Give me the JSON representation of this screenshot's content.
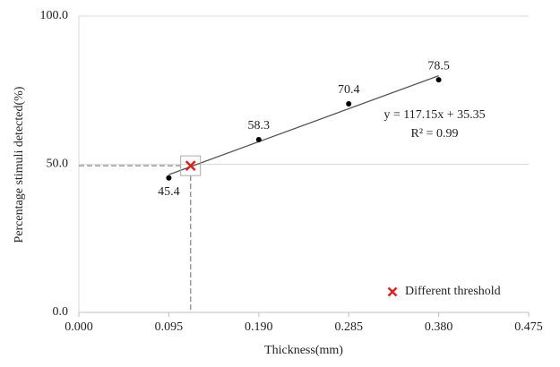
{
  "chart_data": {
    "type": "scatter",
    "x": [
      0.095,
      0.19,
      0.285,
      0.38
    ],
    "values": [
      45.4,
      58.3,
      70.4,
      78.5
    ],
    "color": "#000000",
    "xlabel": "Thickness(mm)",
    "ylabel": "Percentage stimuli detected(%)",
    "xlim": [
      0,
      0.475
    ],
    "xticks": [
      {
        "value": 0,
        "label": "0.000"
      },
      0.095,
      {
        "value": 0.19,
        "label": "0.190"
      },
      0.285,
      {
        "value": 0.38,
        "label": "0.380"
      },
      0.475
    ],
    "ylim": [
      0,
      100
    ],
    "yticks": [
      {
        "value": 0,
        "label": "0.0"
      },
      {
        "value": 50,
        "label": "50.0"
      },
      {
        "value": 100,
        "label": "100.0"
      }
    ],
    "grid": true,
    "trendline": {
      "slope": 117.15,
      "intercept": 35.35,
      "equation": "y = 117.15x + 35.35",
      "r2_label": "R² = 0.99",
      "color": "#555555"
    },
    "threshold": {
      "name": "Different threshold",
      "x": 0.118,
      "y": 49.5,
      "color": "#e02020"
    },
    "legend": "lower right"
  }
}
